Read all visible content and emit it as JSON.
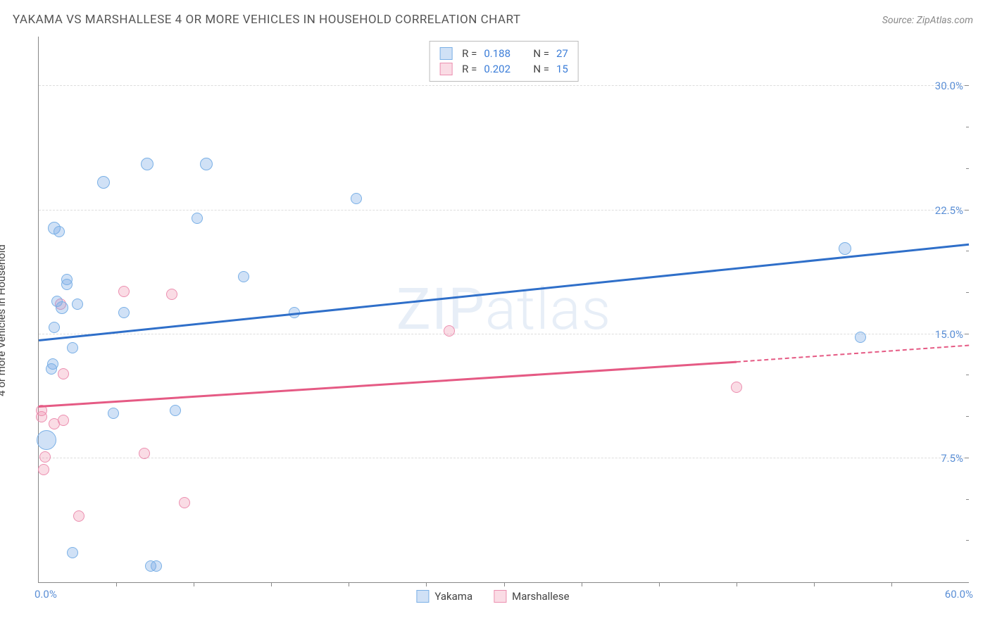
{
  "header": {
    "title": "YAKAMA VS MARSHALLESE 4 OR MORE VEHICLES IN HOUSEHOLD CORRELATION CHART",
    "source": "Source: ZipAtlas.com"
  },
  "chart": {
    "type": "scatter",
    "xlim": [
      0,
      60
    ],
    "ylim": [
      0,
      33
    ],
    "x_min_label": "0.0%",
    "x_max_label": "60.0%",
    "ylabel": "4 or more Vehicles in Household",
    "y_gridlines": [
      7.5,
      15.0,
      22.5,
      30.0
    ],
    "y_grid_labels": [
      "7.5%",
      "15.0%",
      "22.5%",
      "30.0%"
    ],
    "x_minor_ticks": [
      5,
      10,
      15,
      20,
      25,
      30,
      35,
      40,
      45,
      50,
      55
    ],
    "y_minor_ticks": [
      2.5,
      5,
      10,
      12.5,
      17.5,
      20,
      25,
      27.5
    ],
    "background_color": "#ffffff",
    "grid_color": "#dddddd",
    "axis_color": "#888888",
    "tick_label_color": "#5b8fd6",
    "watermark": "ZIPatlas",
    "series": {
      "yakama": {
        "label": "Yakama",
        "fill": "rgba(120,170,230,0.35)",
        "stroke": "#7ab0e6",
        "trend_color": "#2f6fc9",
        "r_label": "R =",
        "r_value": "0.188",
        "n_label": "N =",
        "n_value": "27",
        "trend": {
          "x1": 0,
          "y1": 14.6,
          "x2": 60,
          "y2": 20.4
        },
        "points": [
          {
            "x": 1.0,
            "y": 21.4,
            "r": 9
          },
          {
            "x": 1.3,
            "y": 21.2,
            "r": 8
          },
          {
            "x": 1.2,
            "y": 17.0,
            "r": 8
          },
          {
            "x": 1.8,
            "y": 18.3,
            "r": 8
          },
          {
            "x": 1.8,
            "y": 18.0,
            "r": 8
          },
          {
            "x": 1.5,
            "y": 16.6,
            "r": 9
          },
          {
            "x": 1.0,
            "y": 15.4,
            "r": 8
          },
          {
            "x": 2.2,
            "y": 14.2,
            "r": 8
          },
          {
            "x": 0.9,
            "y": 13.2,
            "r": 8
          },
          {
            "x": 0.8,
            "y": 12.9,
            "r": 8
          },
          {
            "x": 0.5,
            "y": 8.6,
            "r": 14
          },
          {
            "x": 2.2,
            "y": 1.8,
            "r": 8
          },
          {
            "x": 4.2,
            "y": 24.2,
            "r": 9
          },
          {
            "x": 5.5,
            "y": 16.3,
            "r": 8
          },
          {
            "x": 4.8,
            "y": 10.2,
            "r": 8
          },
          {
            "x": 7.0,
            "y": 25.3,
            "r": 9
          },
          {
            "x": 7.2,
            "y": 1.0,
            "r": 8
          },
          {
            "x": 7.6,
            "y": 1.0,
            "r": 8
          },
          {
            "x": 8.8,
            "y": 10.4,
            "r": 8
          },
          {
            "x": 10.2,
            "y": 22.0,
            "r": 8
          },
          {
            "x": 10.8,
            "y": 25.3,
            "r": 9
          },
          {
            "x": 13.2,
            "y": 18.5,
            "r": 8
          },
          {
            "x": 16.5,
            "y": 16.3,
            "r": 8
          },
          {
            "x": 20.5,
            "y": 23.2,
            "r": 8
          },
          {
            "x": 52.0,
            "y": 20.2,
            "r": 9
          },
          {
            "x": 53.0,
            "y": 14.8,
            "r": 8
          },
          {
            "x": 2.5,
            "y": 16.8,
            "r": 8
          }
        ]
      },
      "marshallese": {
        "label": "Marshallese",
        "fill": "rgba(240,140,170,0.30)",
        "stroke": "#ec8fb0",
        "trend_color": "#e55a84",
        "r_label": "R =",
        "r_value": "0.202",
        "n_label": "N =",
        "n_value": "15",
        "trend_solid": {
          "x1": 0,
          "y1": 10.6,
          "x2": 45,
          "y2": 13.3
        },
        "trend_dash": {
          "x1": 45,
          "y1": 13.3,
          "x2": 60,
          "y2": 14.3
        },
        "points": [
          {
            "x": 0.2,
            "y": 10.4,
            "r": 8
          },
          {
            "x": 0.2,
            "y": 10.0,
            "r": 8
          },
          {
            "x": 0.4,
            "y": 7.6,
            "r": 8
          },
          {
            "x": 0.3,
            "y": 6.8,
            "r": 8
          },
          {
            "x": 1.4,
            "y": 16.8,
            "r": 8
          },
          {
            "x": 1.6,
            "y": 12.6,
            "r": 8
          },
          {
            "x": 1.6,
            "y": 9.8,
            "r": 8
          },
          {
            "x": 2.6,
            "y": 4.0,
            "r": 8
          },
          {
            "x": 5.5,
            "y": 17.6,
            "r": 8
          },
          {
            "x": 6.8,
            "y": 7.8,
            "r": 8
          },
          {
            "x": 8.6,
            "y": 17.4,
            "r": 8
          },
          {
            "x": 9.4,
            "y": 4.8,
            "r": 8
          },
          {
            "x": 26.5,
            "y": 15.2,
            "r": 8
          },
          {
            "x": 45.0,
            "y": 11.8,
            "r": 8
          },
          {
            "x": 1.0,
            "y": 9.6,
            "r": 8
          }
        ]
      }
    }
  }
}
